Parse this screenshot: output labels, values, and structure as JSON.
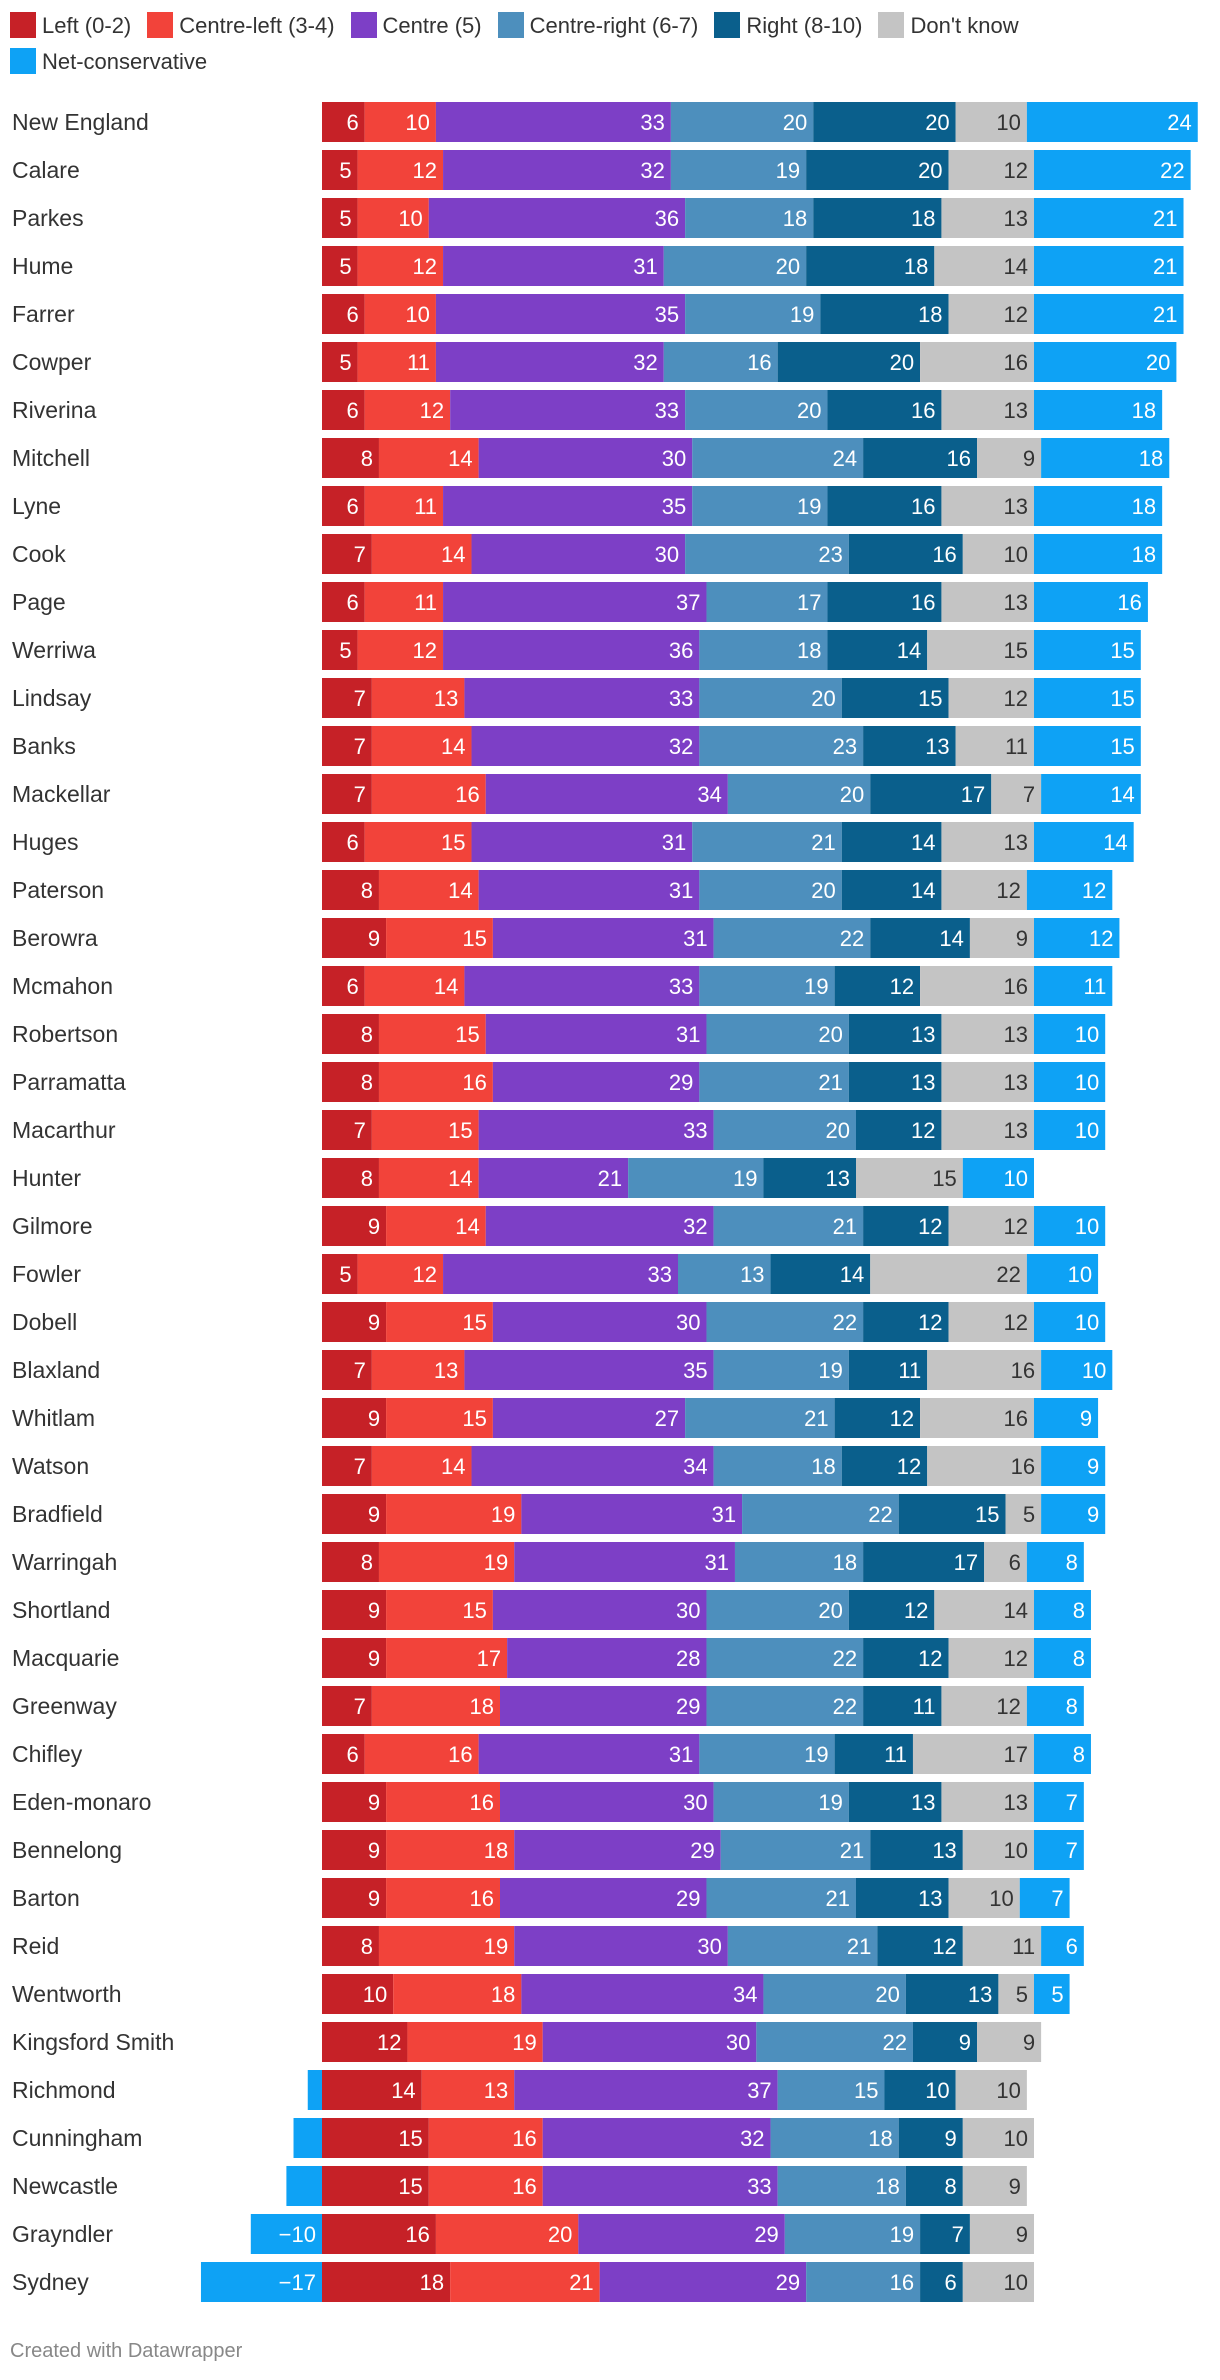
{
  "legend": [
    {
      "label": "Left (0-2)",
      "color": "#c62127"
    },
    {
      "label": "Centre-left (3-4)",
      "color": "#f2433a"
    },
    {
      "label": "Centre (5)",
      "color": "#7d3fc6"
    },
    {
      "label": "Centre-right (6-7)",
      "color": "#4d8fbd"
    },
    {
      "label": "Right (8-10)",
      "color": "#0a5f8c"
    },
    {
      "label": "Don't know",
      "color": "#c4c4c4"
    },
    {
      "label": "Net-conservative",
      "color": "#0ea2f5"
    }
  ],
  "footer": "Created with Datawrapper",
  "chart_data": {
    "type": "bar",
    "orientation": "horizontal",
    "stacked": true,
    "series_order": [
      "Left (0-2)",
      "Centre-left (3-4)",
      "Centre (5)",
      "Centre-right (6-7)",
      "Right (8-10)",
      "Don't know",
      "Net-conservative"
    ],
    "rows": [
      {
        "name": "New England",
        "values": [
          6,
          10,
          33,
          20,
          20,
          10,
          24
        ]
      },
      {
        "name": "Calare",
        "values": [
          5,
          12,
          32,
          19,
          20,
          12,
          22
        ]
      },
      {
        "name": "Parkes",
        "values": [
          5,
          10,
          36,
          18,
          18,
          13,
          21
        ]
      },
      {
        "name": "Hume",
        "values": [
          5,
          12,
          31,
          20,
          18,
          14,
          21
        ]
      },
      {
        "name": "Farrer",
        "values": [
          6,
          10,
          35,
          19,
          18,
          12,
          21
        ]
      },
      {
        "name": "Cowper",
        "values": [
          5,
          11,
          32,
          16,
          20,
          16,
          20
        ]
      },
      {
        "name": "Riverina",
        "values": [
          6,
          12,
          33,
          20,
          16,
          13,
          18
        ]
      },
      {
        "name": "Mitchell",
        "values": [
          8,
          14,
          30,
          24,
          16,
          9,
          18
        ]
      },
      {
        "name": "Lyne",
        "values": [
          6,
          11,
          35,
          19,
          16,
          13,
          18
        ]
      },
      {
        "name": "Cook",
        "values": [
          7,
          14,
          30,
          23,
          16,
          10,
          18
        ]
      },
      {
        "name": "Page",
        "values": [
          6,
          11,
          37,
          17,
          16,
          13,
          16
        ]
      },
      {
        "name": "Werriwa",
        "values": [
          5,
          12,
          36,
          18,
          14,
          15,
          15
        ]
      },
      {
        "name": "Lindsay",
        "values": [
          7,
          13,
          33,
          20,
          15,
          12,
          15
        ]
      },
      {
        "name": "Banks",
        "values": [
          7,
          14,
          32,
          23,
          13,
          11,
          15
        ]
      },
      {
        "name": "Mackellar",
        "values": [
          7,
          16,
          34,
          20,
          17,
          7,
          14
        ]
      },
      {
        "name": "Huges",
        "values": [
          6,
          15,
          31,
          21,
          14,
          13,
          14
        ]
      },
      {
        "name": "Paterson",
        "values": [
          8,
          14,
          31,
          20,
          14,
          12,
          12
        ]
      },
      {
        "name": "Berowra",
        "values": [
          9,
          15,
          31,
          22,
          14,
          9,
          12
        ]
      },
      {
        "name": "Mcmahon",
        "values": [
          6,
          14,
          33,
          19,
          12,
          16,
          11
        ]
      },
      {
        "name": "Robertson",
        "values": [
          8,
          15,
          31,
          20,
          13,
          13,
          10
        ]
      },
      {
        "name": "Parramatta",
        "values": [
          8,
          16,
          29,
          21,
          13,
          13,
          10
        ]
      },
      {
        "name": "Macarthur",
        "values": [
          7,
          15,
          33,
          20,
          12,
          13,
          10
        ]
      },
      {
        "name": "Hunter",
        "values": [
          8,
          14,
          21,
          19,
          13,
          15,
          10
        ]
      },
      {
        "name": "Gilmore",
        "values": [
          9,
          14,
          32,
          21,
          12,
          12,
          10
        ]
      },
      {
        "name": "Fowler",
        "values": [
          5,
          12,
          33,
          13,
          14,
          22,
          10
        ]
      },
      {
        "name": "Dobell",
        "values": [
          9,
          15,
          30,
          22,
          12,
          12,
          10
        ]
      },
      {
        "name": "Blaxland",
        "values": [
          7,
          13,
          35,
          19,
          11,
          16,
          10
        ]
      },
      {
        "name": "Whitlam",
        "values": [
          9,
          15,
          27,
          21,
          12,
          16,
          9
        ]
      },
      {
        "name": "Watson",
        "values": [
          7,
          14,
          34,
          18,
          12,
          16,
          9
        ]
      },
      {
        "name": "Bradfield",
        "values": [
          9,
          19,
          31,
          22,
          15,
          5,
          9
        ]
      },
      {
        "name": "Warringah",
        "values": [
          8,
          19,
          31,
          18,
          17,
          6,
          8
        ]
      },
      {
        "name": "Shortland",
        "values": [
          9,
          15,
          30,
          20,
          12,
          14,
          8
        ]
      },
      {
        "name": "Macquarie",
        "values": [
          9,
          17,
          28,
          22,
          12,
          12,
          8
        ]
      },
      {
        "name": "Greenway",
        "values": [
          7,
          18,
          29,
          22,
          11,
          12,
          8
        ]
      },
      {
        "name": "Chifley",
        "values": [
          6,
          16,
          31,
          19,
          11,
          17,
          8
        ]
      },
      {
        "name": "Eden-monaro",
        "values": [
          9,
          16,
          30,
          19,
          13,
          13,
          7
        ]
      },
      {
        "name": "Bennelong",
        "values": [
          9,
          18,
          29,
          21,
          13,
          10,
          7
        ]
      },
      {
        "name": "Barton",
        "values": [
          9,
          16,
          29,
          21,
          13,
          10,
          7
        ]
      },
      {
        "name": "Reid",
        "values": [
          8,
          19,
          30,
          21,
          12,
          11,
          6
        ]
      },
      {
        "name": "Wentworth",
        "values": [
          10,
          18,
          34,
          20,
          13,
          5,
          5
        ]
      },
      {
        "name": "Kingsford Smith",
        "values": [
          12,
          19,
          30,
          22,
          9,
          9,
          0
        ]
      },
      {
        "name": "Richmond",
        "values": [
          14,
          13,
          37,
          15,
          10,
          10,
          -2
        ]
      },
      {
        "name": "Cunningham",
        "values": [
          15,
          16,
          32,
          18,
          9,
          10,
          -4
        ]
      },
      {
        "name": "Newcastle",
        "values": [
          15,
          16,
          33,
          18,
          8,
          9,
          -5
        ]
      },
      {
        "name": "Grayndler",
        "values": [
          16,
          20,
          29,
          19,
          7,
          9,
          -10
        ]
      },
      {
        "name": "Sydney",
        "values": [
          18,
          21,
          29,
          16,
          6,
          10,
          -17
        ]
      }
    ],
    "value_labels": {
      "Kingsford Smith": [
        12,
        19,
        30,
        22,
        9,
        9,
        ""
      ],
      "Richmond": [
        14,
        13,
        37,
        15,
        10,
        10,
        ""
      ],
      "Cunningham": [
        15,
        16,
        32,
        18,
        9,
        10,
        ""
      ],
      "Newcastle": [
        15,
        16,
        33,
        18,
        8,
        9,
        ""
      ],
      "Grayndler": [
        16,
        20,
        29,
        19,
        7,
        9,
        "−10"
      ],
      "Sydney": [
        18,
        21,
        29,
        16,
        6,
        10,
        "−17"
      ]
    }
  }
}
